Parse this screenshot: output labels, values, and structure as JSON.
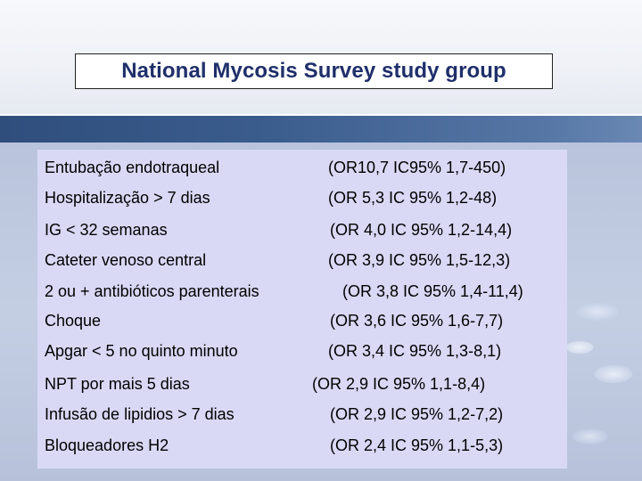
{
  "title": "National Mycosis Survey study group",
  "rows": [
    {
      "label": "Entubação endotraqueal",
      "value": "(OR10,7 IC95% 1,7-450)"
    },
    {
      "label": "Hospitalização > 7 dias",
      "value": "(OR 5,3 IC 95% 1,2-48)"
    },
    {
      "label": "IG < 32 semanas",
      "value": "(OR 4,0 IC 95% 1,2-14,4)"
    },
    {
      "label": "Cateter venoso central",
      "value": "(OR 3,9 IC 95% 1,5-12,3)"
    },
    {
      "label": "2 ou + antibióticos parenterais",
      "value": "(OR 3,8 IC 95% 1,4-11,4)"
    },
    {
      "label": "Choque",
      "value": "(OR 3,6 IC 95% 1,6-7,7)"
    },
    {
      "label": "Apgar < 5 no quinto minuto",
      "value": "(OR 3,4 IC 95% 1,3-8,1)"
    },
    {
      "label": "NPT  por mais 5 dias",
      "value": "(OR 2,9 IC 95% 1,1-8,4)"
    },
    {
      "label": "Infusão de lipidios > 7 dias",
      "value": "(OR 2,9 IC 95% 1,2-7,2)"
    },
    {
      "label": "Bloqueadores H2",
      "value": "(OR 2,4 IC 95% 1,1-5,3)"
    }
  ]
}
